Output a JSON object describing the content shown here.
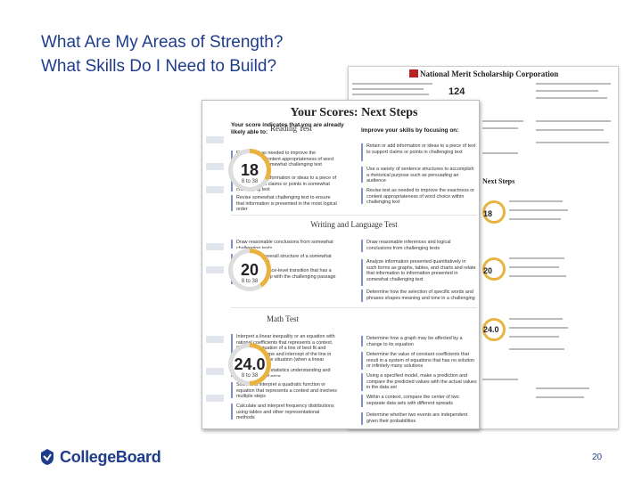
{
  "slide": {
    "title_line1": "What Are My Areas of Strength?",
    "title_line2": "What Skills Do I Need to Build?",
    "page_number": "20"
  },
  "brand": {
    "name": "CollegeBoard",
    "color": "#1f3d8a"
  },
  "back_doc": {
    "header": "National Merit Scholarship Corporation",
    "score": "124",
    "section": "Next Steps",
    "scores": [
      "18",
      "20",
      "24.0"
    ]
  },
  "front_doc": {
    "title": "Your Scores: Next Steps",
    "lead_left": "Your score indicates that you are already likely able to:",
    "lead_right": "Improve your skills by focusing on:",
    "sections": [
      {
        "name": "Reading Test",
        "score": "18",
        "range": "8 to 38",
        "score_fraction": 0.33,
        "left": [
          "Revise text as needed to improve the exactness or content appropriateness of word choice within somewhat challenging text",
          "Retain or add information or ideas to a piece of text to support claims or points in somewhat challenging text",
          "Revise somewhat challenging text to ensure that information is presented in the most logical order"
        ],
        "right": [
          "Retain or add information or ideas to a piece of text to support claims or points in challenging text",
          "Use a variety of sentence structures to accomplish a rhetorical purpose such as persuading an audience",
          "Revise text as needed to improve the exactness or content appropriateness of word choice within challenging text"
        ]
      },
      {
        "name": "Writing and Language Test",
        "score": "20",
        "range": "8 to 38",
        "score_fraction": 0.4,
        "left": [
          "Draw reasonable conclusions from somewhat challenging texts",
          "Describe the overall structure of a somewhat challenging text",
          "Identify a sentence-level transition that has a clear relationship with the challenging passage"
        ],
        "right": [
          "Draw reasonable inferences and logical conclusions from challenging texts",
          "Analyze information presented quantitatively in such forms as graphs, tables, and charts and relate that information to information presented in somewhat challenging text",
          "Determine how the selection of specific words and phrases shapes meaning and tone in a challenging passage"
        ]
      },
      {
        "name": "Math Test",
        "score": "24.0",
        "range": "8 to 38",
        "score_fraction": 0.5,
        "left": [
          "Interpret a linear inequality or an equation with rational coefficients that represents a context. Select the equation of a line of best fit and interpret the slope and intercept of the line in the context of the situation (when a linear relationship is given)",
          "Interpret simple statistics understanding and using margin of error",
          "Solve and interpret a quadratic function or equation that represents a context and involves multiple steps",
          "Calculate and interpret frequency distributions using tables and other representational methods"
        ],
        "right": [
          "Determine how a graph may be affected by a change to its equation",
          "Determine the value of constant coefficients that result in a system of equations that has no solution or infinitely many solutions",
          "Using a specified model, make a prediction and compare the predicted values with the actual values in the data set",
          "Within a context, compare the center of two separate data sets with different spreads",
          "Determine whether two events are independent given their probabilities"
        ]
      }
    ]
  },
  "colors": {
    "gauge": "#e8b340",
    "gauge_track": "#dddddd",
    "bar": "#7a93c4"
  }
}
